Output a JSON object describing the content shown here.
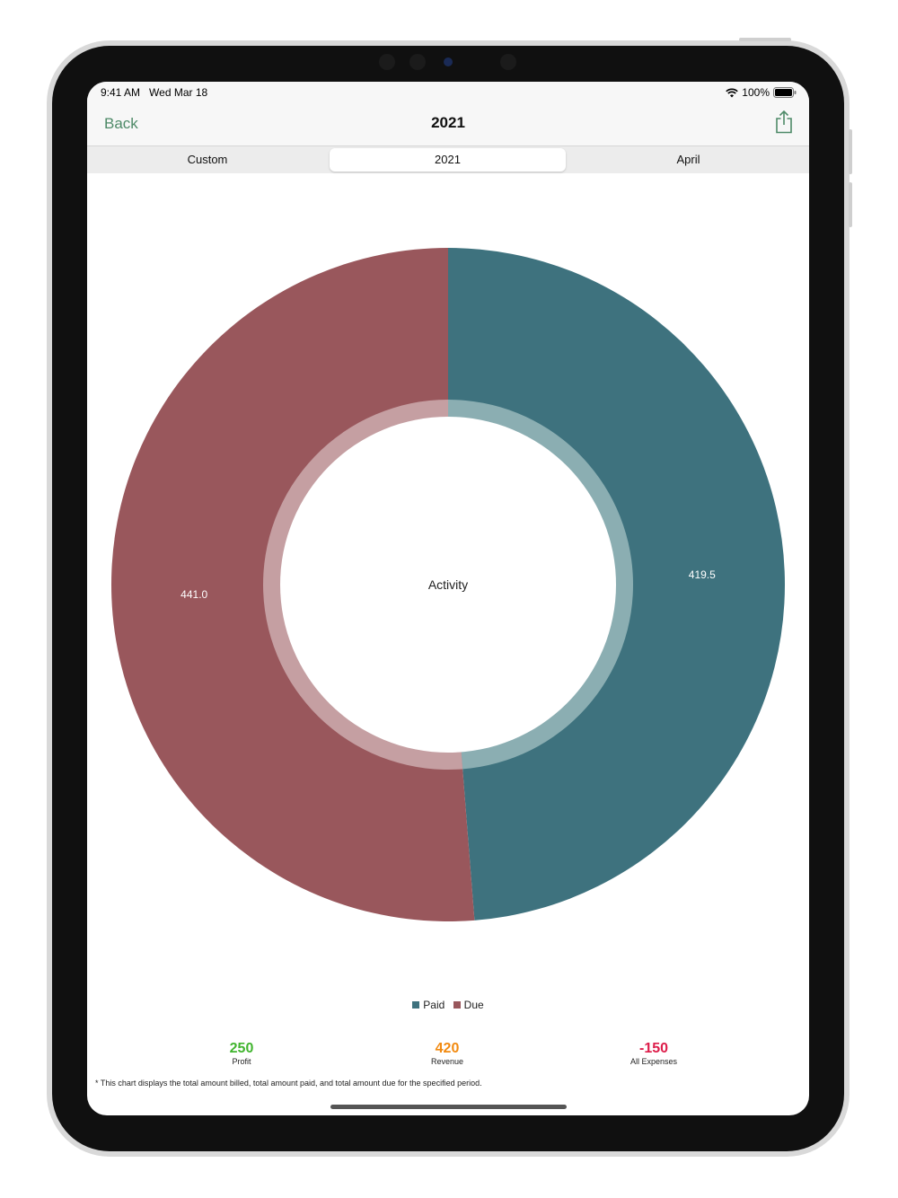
{
  "status_bar": {
    "time": "9:41 AM",
    "date": "Wed Mar 18",
    "battery": "100%"
  },
  "nav": {
    "back_label": "Back",
    "title": "2021",
    "share_icon": "share-icon"
  },
  "segments": [
    {
      "label": "Custom",
      "selected": false
    },
    {
      "label": "2021",
      "selected": true
    },
    {
      "label": "April",
      "selected": false
    }
  ],
  "chart_data": {
    "type": "pie",
    "center_label": "Activity",
    "slices": [
      {
        "name": "Paid",
        "value": 419.5,
        "label": "419.5",
        "color": "#3e727e"
      },
      {
        "name": "Due",
        "value": 441.0,
        "label": "441.0",
        "color": "#99575c"
      }
    ],
    "inner_ring_colors": {
      "Paid": "#8baeb2",
      "Due": "#c59fa2"
    },
    "legend": [
      "Paid",
      "Due"
    ]
  },
  "summary": [
    {
      "value": "250",
      "label": "Profit",
      "color": "#41b52f"
    },
    {
      "value": "420",
      "label": "Revenue",
      "color": "#f28a10"
    },
    {
      "value": "-150",
      "label": "All Expenses",
      "color": "#dd1d4a"
    }
  ],
  "footnote": "* This chart displays the total amount billed, total amount paid, and total amount due for the specified period."
}
